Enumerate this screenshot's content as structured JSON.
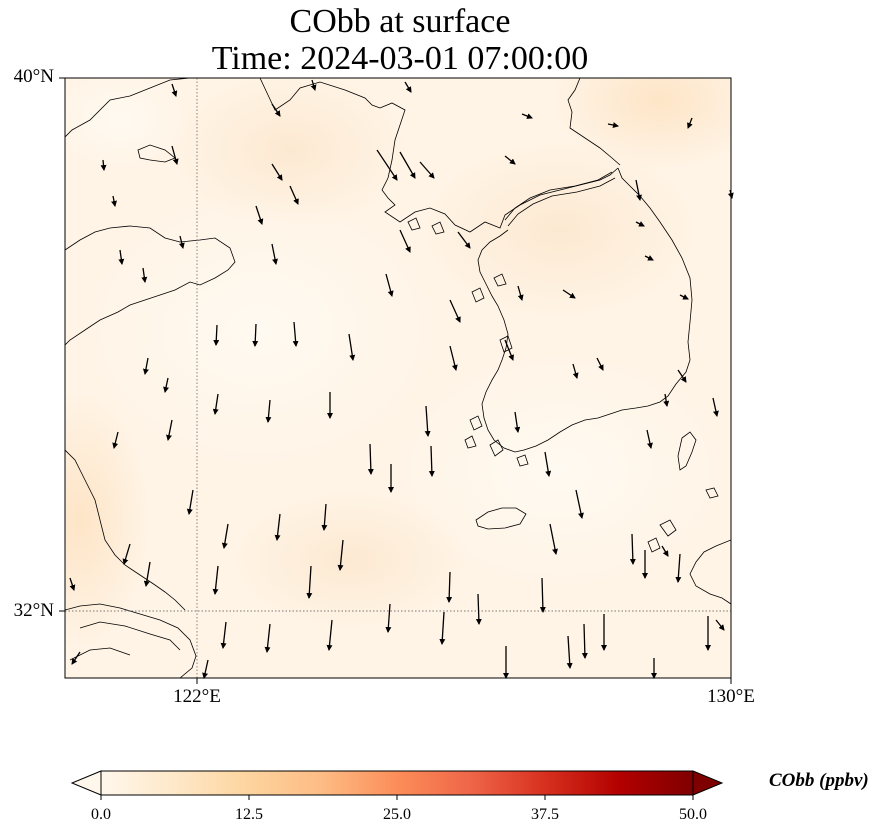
{
  "title": {
    "line1": "CObb at surface",
    "line2": "Time: 2024-03-01 07:00:00"
  },
  "axes": {
    "lat_labels": [
      "40°N",
      "32°N"
    ],
    "lon_labels": [
      "122°E",
      "130°E"
    ],
    "lon_range": [
      120,
      130
    ],
    "lat_range": [
      31,
      40
    ],
    "gridlines": "dotted, at 122°E and 32°N"
  },
  "colorbar": {
    "label": "CObb (ppbv)",
    "ticks": [
      "0.0",
      "12.5",
      "25.0",
      "37.5",
      "50.0"
    ],
    "range": [
      0,
      50
    ],
    "colormap": "OrRd",
    "extend": "both",
    "colors": [
      "#fff7ec",
      "#fee8c8",
      "#fdd49e",
      "#fdbb84",
      "#fc8d59",
      "#ef6548",
      "#d7301f",
      "#b30000",
      "#7f0000"
    ]
  },
  "field": {
    "description_values_ppbv": "approximately 0–6 across the domain",
    "base_color": "#fff4e6"
  }
}
